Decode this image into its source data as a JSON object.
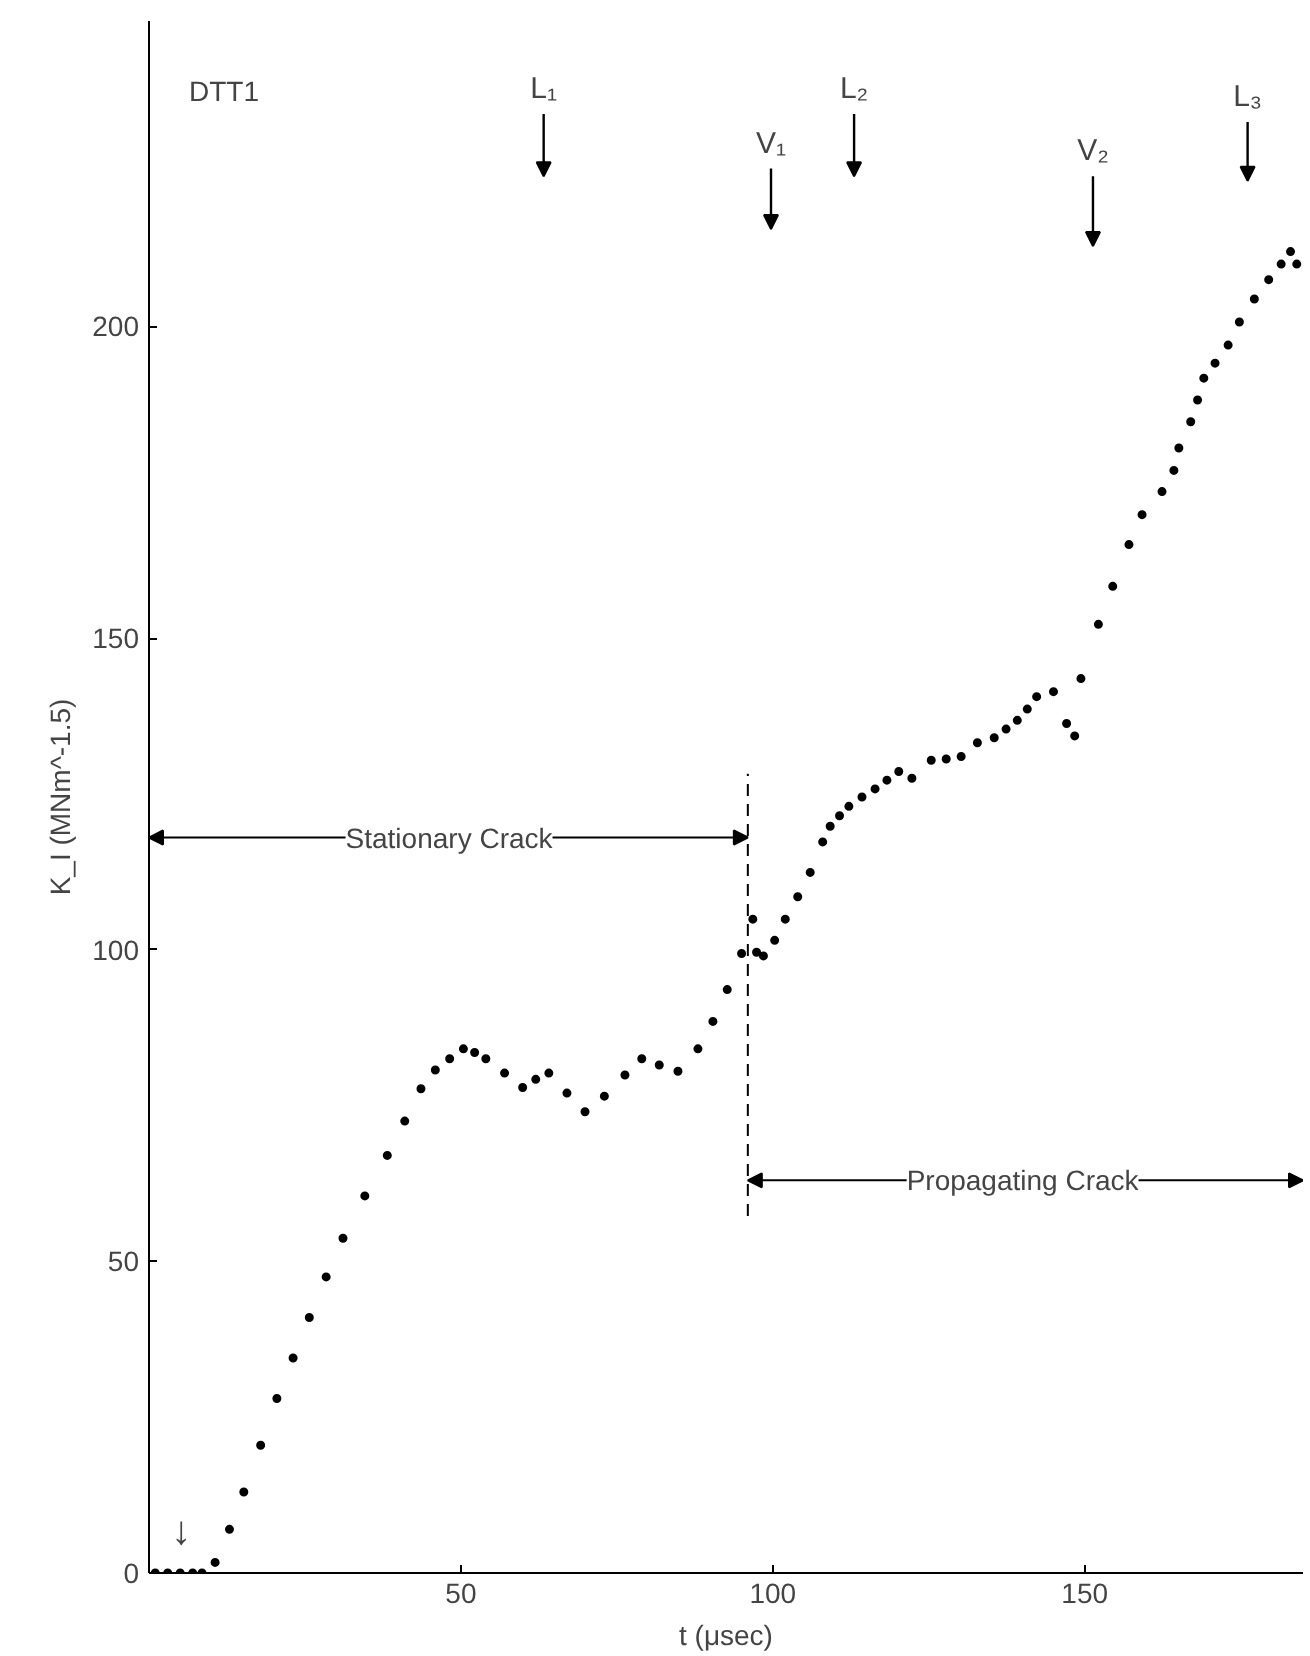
{
  "chart_data": {
    "type": "scatter",
    "title": "DTT1",
    "xlabel": "t (μsec)",
    "ylabel": "K_I (MNm^-1.5)",
    "xlim": [
      0,
      185
    ],
    "ylim": [
      0,
      249
    ],
    "xticks": [
      50,
      100,
      150
    ],
    "yticks": [
      0,
      50,
      100,
      150,
      200
    ],
    "marker": "circle",
    "grid": false,
    "series": [
      {
        "color": "#000000",
        "x": [
          1,
          3,
          5,
          7,
          8.5,
          10.6,
          12.9,
          15.2,
          17.9,
          20.5,
          23.1,
          25.7,
          28.4,
          31.1,
          34.6,
          38.2,
          41,
          43.6,
          45.9,
          48.2,
          50.4,
          52.2,
          54,
          57,
          59.9,
          62,
          64.1,
          67,
          69.9,
          73,
          76.3,
          79,
          81.8,
          84.8,
          88,
          90.4,
          92.7,
          95,
          96.8,
          97.4,
          98.5,
          100.3,
          102,
          104,
          106,
          108,
          109.2,
          110.7,
          112.2,
          114.3,
          116.4,
          118.3,
          120.2,
          122.3,
          125.4,
          127.8,
          130.2,
          132.8,
          135.5,
          137.4,
          139.2,
          140.8,
          142.3,
          145,
          147.1,
          148.4,
          149.4,
          152.2,
          154.5,
          157.1,
          159.2,
          162.4,
          164.3,
          165.1,
          167,
          168.1,
          169.1,
          170.9,
          173,
          174.8,
          177.2,
          179.5,
          181.5,
          183,
          184
        ],
        "values": [
          0,
          0,
          0,
          0,
          0,
          1.7,
          7,
          13,
          20.5,
          28,
          34.5,
          41,
          47.5,
          53.7,
          60.5,
          67,
          72.5,
          77.7,
          80.7,
          82.5,
          84.1,
          83.5,
          82.5,
          80.2,
          77.9,
          79.2,
          80.2,
          77,
          74,
          76.5,
          79.9,
          82.5,
          81.5,
          80.5,
          84.1,
          88.5,
          93.6,
          99.4,
          104.9,
          99.6,
          99,
          101.5,
          104.9,
          108.5,
          112.4,
          117.3,
          119.8,
          121.5,
          123,
          124.5,
          125.8,
          127.2,
          128.6,
          127.5,
          130.4,
          130.6,
          131,
          133.2,
          134,
          135.4,
          136.8,
          138.6,
          140.6,
          141.4,
          136.3,
          134.3,
          143.5,
          152.2,
          158.3,
          165,
          169.8,
          173.5,
          176.9,
          180.5,
          184.7,
          188.2,
          191.7,
          194.1,
          197,
          200.7,
          204.4,
          207.5,
          210,
          212,
          210
        ]
      }
    ],
    "ref_lines": [
      {
        "axis": "x",
        "value": 96,
        "line_style": "dashed",
        "color": "#000000"
      }
    ],
    "annotations": [
      {
        "text": "Stationary Crack",
        "x": 96,
        "y": 118
      },
      {
        "text": "Propagating Crack",
        "x": 96,
        "y": 63
      },
      "L₁",
      "L₂",
      "L₃",
      "V₁",
      "V₂",
      "↓"
    ]
  }
}
